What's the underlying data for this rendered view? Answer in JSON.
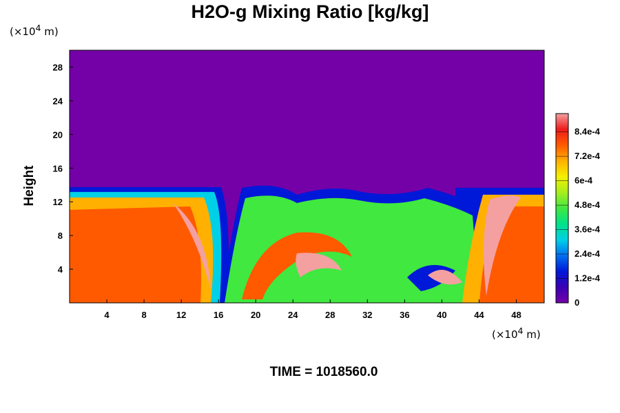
{
  "chart_data": {
    "type": "heatmap",
    "title": "H2O-g Mixing Ratio [kg/kg]",
    "xlabel": "",
    "ylabel": "Height",
    "x_units": "(×10",
    "x_units_exp": "4",
    "x_units_tail": " m)",
    "y_units": "(×10",
    "y_units_exp": "4",
    "y_units_tail": " m)",
    "xlim": [
      0,
      51
    ],
    "ylim": [
      0,
      30
    ],
    "x_ticks": [
      "4",
      "8",
      "12",
      "16",
      "20",
      "24",
      "28",
      "32",
      "36",
      "40",
      "44",
      "48"
    ],
    "y_ticks": [
      "4",
      "8",
      "12",
      "16",
      "20",
      "24",
      "28"
    ],
    "colorbar": {
      "range": [
        0,
        0.00093
      ],
      "tick_values": [
        0,
        0.00012,
        0.00024,
        0.00036,
        0.00048,
        0.0006,
        0.00072,
        0.00084
      ],
      "tick_labels": [
        "0",
        "1.2e-4",
        "2.4e-4",
        "3.6e-4",
        "4.8e-4",
        "6e-4",
        "7.2e-4",
        "8.4e-4"
      ],
      "colors": [
        "#7400a8",
        "#3a00b4",
        "#0018d8",
        "#0070f0",
        "#00d0e6",
        "#00e28a",
        "#40e840",
        "#a8ee1e",
        "#f4f000",
        "#ffb000",
        "#ff5a00",
        "#ee1c1c",
        "#f4a0a0"
      ]
    },
    "moist_layer_top_approx": 13.5,
    "background_color": "#7400a8"
  },
  "footer": {
    "time": "TIME = 1018560.0"
  }
}
